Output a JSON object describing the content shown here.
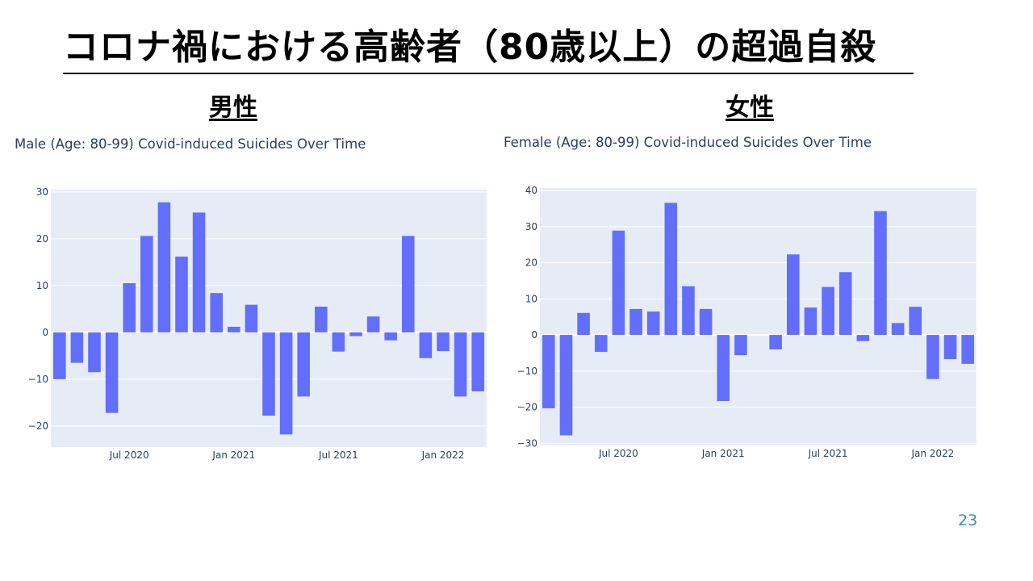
{
  "slide": {
    "title": "コロナ禍における高齢者（80歳以上）の超過自殺",
    "page_number": "23"
  },
  "sections": {
    "male_label": "男性",
    "female_label": "女性"
  },
  "colors": {
    "bar": "#636efa",
    "plot_bg": "#e5ecf6",
    "grid": "#ffffff",
    "text": "#2a3f5f"
  },
  "chart_data": [
    {
      "id": "male",
      "type": "bar",
      "title": "Male (Age: 80-99) Covid-induced Suicides Over Time",
      "x": [
        "2020-03",
        "2020-04",
        "2020-05",
        "2020-06",
        "2020-07",
        "2020-08",
        "2020-09",
        "2020-10",
        "2020-11",
        "2020-12",
        "2021-01",
        "2021-02",
        "2021-03",
        "2021-04",
        "2021-05",
        "2021-06",
        "2021-07",
        "2021-08",
        "2021-09",
        "2021-10",
        "2021-11",
        "2021-12",
        "2022-01",
        "2022-02",
        "2022-03"
      ],
      "values": [
        -10,
        -6.5,
        -8.5,
        -17.2,
        10.5,
        20.6,
        27.8,
        16.2,
        25.6,
        8.4,
        1.2,
        5.9,
        -17.8,
        -21.8,
        -13.7,
        5.5,
        -4.1,
        -0.8,
        3.4,
        -1.7,
        20.6,
        -5.5,
        -4.0,
        -13.7,
        -12.6
      ],
      "yticks": [
        "30",
        "20",
        "10",
        "0",
        "−10",
        "−20"
      ],
      "ytick_values": [
        30,
        20,
        10,
        0,
        -10,
        -20
      ],
      "ylim": [
        -24.5,
        30.5
      ],
      "xticks": [
        "Jul 2020",
        "Jan 2021",
        "Jul 2021",
        "Jan 2022"
      ],
      "xtick_index": [
        4,
        10,
        16,
        22
      ],
      "xlabel": "",
      "ylabel": "",
      "grid": true
    },
    {
      "id": "female",
      "type": "bar",
      "title": "Female (Age: 80-99) Covid-induced Suicides Over Time",
      "x": [
        "2020-03",
        "2020-04",
        "2020-05",
        "2020-06",
        "2020-07",
        "2020-08",
        "2020-09",
        "2020-10",
        "2020-11",
        "2020-12",
        "2021-01",
        "2021-02",
        "2021-03",
        "2021-04",
        "2021-05",
        "2021-06",
        "2021-07",
        "2021-08",
        "2021-09",
        "2021-10",
        "2021-11",
        "2021-12",
        "2022-01",
        "2022-02",
        "2022-03"
      ],
      "values": [
        -20.3,
        -27.8,
        6.1,
        -4.7,
        28.9,
        7.2,
        6.5,
        36.6,
        13.5,
        7.2,
        -18.3,
        -5.6,
        0,
        -4.0,
        22.3,
        7.6,
        13.3,
        17.4,
        -1.7,
        34.3,
        3.3,
        7.8,
        -12.2,
        -6.7,
        -8.0
      ],
      "yticks": [
        "40",
        "30",
        "20",
        "10",
        "0",
        "−10",
        "−20",
        "−30"
      ],
      "ytick_values": [
        40,
        30,
        20,
        10,
        0,
        -10,
        -20,
        -30
      ],
      "ylim": [
        -30.6,
        40.7
      ],
      "xticks": [
        "Jul 2020",
        "Jan 2021",
        "Jul 2021",
        "Jan 2022"
      ],
      "xtick_index": [
        4,
        10,
        16,
        22
      ],
      "xlabel": "",
      "ylabel": "",
      "grid": true
    }
  ]
}
